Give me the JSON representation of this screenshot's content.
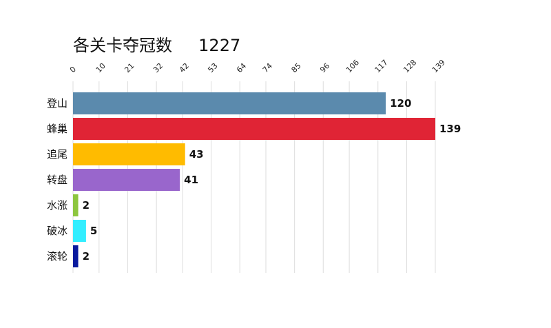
{
  "title": "各关卡夺冠数",
  "total": "1227",
  "chart_data": {
    "type": "bar",
    "orientation": "horizontal",
    "categories": [
      "登山",
      "蜂巢",
      "追尾",
      "转盘",
      "水涨",
      "破冰",
      "滚轮"
    ],
    "values": [
      120,
      139,
      43,
      41,
      2,
      5,
      2
    ],
    "colors": [
      "#5b8aad",
      "#e02435",
      "#ffbb00",
      "#9966cc",
      "#8dc63f",
      "#33eeff",
      "#0a1a9e"
    ],
    "x_ticks": [
      0,
      10,
      21,
      32,
      42,
      53,
      64,
      74,
      85,
      96,
      106,
      117,
      128,
      139
    ],
    "xlim": [
      0,
      139
    ],
    "grid": true,
    "tick_position": "top"
  }
}
